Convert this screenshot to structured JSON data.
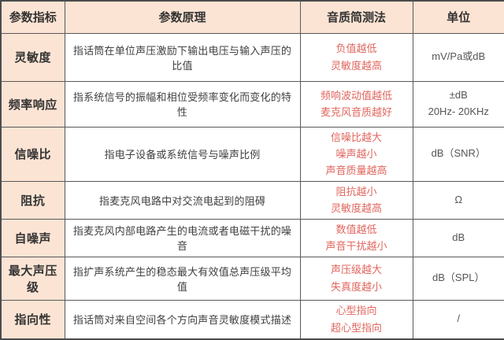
{
  "table": {
    "headers": {
      "indicator": "参数指标",
      "principle": "参数原理",
      "test": "音质简测法",
      "unit": "单位"
    },
    "rows": [
      {
        "indicator": "灵敏度",
        "principle": "指话筒在单位声压激励下输出电压与输入声压的比值",
        "test": "负值越低\n灵敏度越高",
        "unit": "mV/Pa或dB"
      },
      {
        "indicator": "频率响应",
        "principle": "指系统信号的振幅和相位受频率变化而变化的特性",
        "test": "频响波动值越低\n麦克风音质越好",
        "unit": "±dB\n20Hz- 20KHz"
      },
      {
        "indicator": "信噪比",
        "principle": "指电子设备或系统信号与噪声比例",
        "test": "信噪比越大\n噪声越小\n声音质量越高",
        "unit": "dB（SNR）"
      },
      {
        "indicator": "阻抗",
        "principle": "指麦克风电路中对交流电起到的阻碍",
        "test": "阻抗越小\n灵敏度越高",
        "unit": "Ω"
      },
      {
        "indicator": "自噪声",
        "principle": "指麦克风内部电路产生的电流或者电磁干扰的噪音",
        "test": "数值越低\n声音干扰越小",
        "unit": "dB"
      },
      {
        "indicator": "最大声压级",
        "principle": "指扩声系统产生的稳态最大有效值总声压级平均值",
        "test": "声压级越大\n失真度越小",
        "unit": "dB（SPL）"
      },
      {
        "indicator": "指向性",
        "principle": "指话筒对来自空间各个方向声音灵敏度模式描述",
        "test": "心型指向\n超心型指向",
        "unit": "/"
      }
    ]
  },
  "colors": {
    "header_bg": "#fce4d4",
    "highlight_text": "#e0665e",
    "body_text": "#3f3f3f",
    "border": "#595959"
  }
}
